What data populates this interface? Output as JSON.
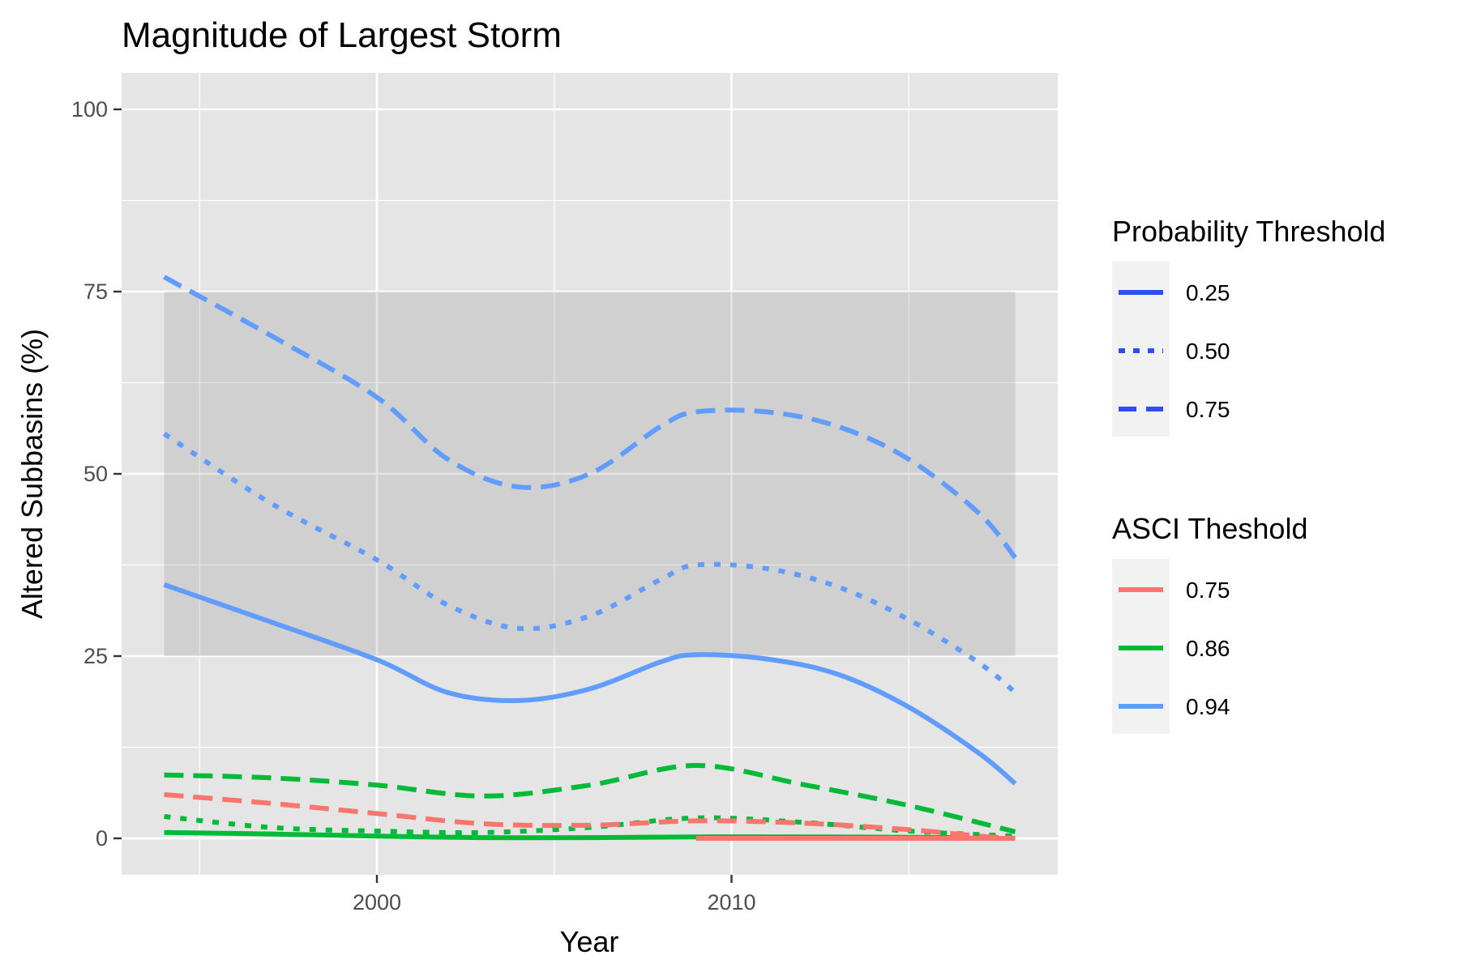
{
  "chart_data": {
    "type": "line",
    "title": "Magnitude of Largest Storm",
    "xlabel": "Year",
    "ylabel": "Altered Subbasins (%)",
    "xlim": [
      1992.8,
      2019.2
    ],
    "ylim": [
      -5,
      105
    ],
    "xticks": [
      2000,
      2010
    ],
    "yticks": [
      0,
      25,
      50,
      75,
      100
    ],
    "grid": true,
    "reference_band": {
      "y_from": 25,
      "y_to": 75,
      "x_from": 1994,
      "x_to": 2018
    },
    "legend_placement": "right",
    "legends": [
      {
        "title": "Probability Threshold",
        "entries": [
          {
            "label": "0.25",
            "linetype": "solid"
          },
          {
            "label": "0.50",
            "linetype": "dotted"
          },
          {
            "label": "0.75",
            "linetype": "dashed"
          }
        ]
      },
      {
        "title": "ASCI Theshold",
        "entries": [
          {
            "label": "0.75",
            "color": "#F8766D"
          },
          {
            "label": "0.86",
            "color": "#00BA38"
          },
          {
            "label": "0.94",
            "color": "#619CFF"
          }
        ]
      }
    ],
    "series": [
      {
        "asci": "0.94",
        "probability": "0.25",
        "color": "#619CFF",
        "linetype": "solid",
        "x": [
          1994,
          1997,
          2000,
          2002,
          2004,
          2006,
          2008,
          2009,
          2011,
          2013,
          2015,
          2017,
          2018
        ],
        "y": [
          34.8,
          29.7,
          24.5,
          20,
          18.9,
          20.5,
          24.2,
          25.2,
          24.6,
          22.5,
          18,
          11.6,
          7.5
        ]
      },
      {
        "asci": "0.94",
        "probability": "0.50",
        "color": "#619CFF",
        "linetype": "dotted",
        "x": [
          1994,
          1997,
          2000,
          2002,
          2004,
          2006,
          2008,
          2009,
          2011,
          2013,
          2015,
          2017,
          2018
        ],
        "y": [
          55.5,
          46,
          38.2,
          32,
          28.8,
          30.5,
          35.5,
          37.5,
          37,
          34.5,
          30,
          24,
          20
        ]
      },
      {
        "asci": "0.94",
        "probability": "0.75",
        "color": "#619CFF",
        "linetype": "dashed",
        "x": [
          1994,
          1997,
          2000,
          2002,
          2004,
          2006,
          2008,
          2009,
          2011,
          2013,
          2015,
          2017,
          2018
        ],
        "y": [
          77,
          69,
          60.5,
          52,
          48.2,
          50,
          56.5,
          58.5,
          58.5,
          56.5,
          52,
          44.5,
          38.5
        ]
      },
      {
        "asci": "0.86",
        "probability": "0.25",
        "color": "#00BA38",
        "linetype": "solid",
        "x": [
          1994,
          1997,
          2000,
          2003,
          2006,
          2009,
          2012,
          2016.5
        ],
        "y": [
          0.8,
          0.6,
          0.3,
          0.1,
          0.1,
          0.2,
          0.2,
          0.1
        ]
      },
      {
        "asci": "0.86",
        "probability": "0.50",
        "color": "#00BA38",
        "linetype": "dotted",
        "x": [
          1994,
          1997,
          2000,
          2003,
          2006,
          2009,
          2012,
          2015,
          2018
        ],
        "y": [
          3,
          1.5,
          1,
          0.8,
          1.5,
          2.8,
          2.2,
          1,
          0.3
        ]
      },
      {
        "asci": "0.86",
        "probability": "0.75",
        "color": "#00BA38",
        "linetype": "dashed",
        "x": [
          1994,
          1997,
          2000,
          2003,
          2006,
          2009,
          2012,
          2015,
          2018
        ],
        "y": [
          8.7,
          8.3,
          7.3,
          5.8,
          7.3,
          10,
          7.4,
          4.5,
          0.9
        ]
      },
      {
        "asci": "0.75",
        "probability": "0.75",
        "color": "#F8766D",
        "linetype": "dashed",
        "x": [
          1994,
          1997,
          2000,
          2003,
          2006,
          2009,
          2012,
          2015,
          2017,
          2018
        ],
        "y": [
          6,
          4.8,
          3.4,
          2,
          1.8,
          2.4,
          2.1,
          1.2,
          0.3,
          0
        ]
      },
      {
        "asci": "0.75",
        "probability": "0.25",
        "color": "#F8766D",
        "linetype": "solid",
        "x": [
          2009,
          2012,
          2015,
          2018
        ],
        "y": [
          0,
          0,
          0,
          0
        ]
      }
    ]
  }
}
